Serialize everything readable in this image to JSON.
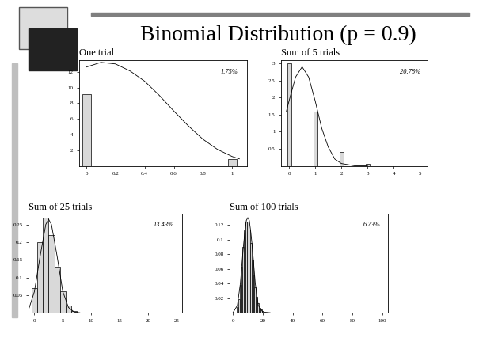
{
  "title": "Binomial Distribution (p = 0.9)",
  "chart_data": [
    {
      "type": "bar",
      "title": "One trial",
      "annotation": "1.75%",
      "color": "#d9d9d9",
      "x": [
        0,
        1
      ],
      "values": [
        9.1,
        0.9
      ],
      "curve_x": [
        0,
        0.1,
        0.2,
        0.3,
        0.4,
        0.5,
        0.6,
        0.7,
        0.8,
        0.9,
        1.0,
        1.05
      ],
      "curve_y": [
        12.6,
        13.2,
        13.0,
        12.1,
        10.8,
        9.0,
        7.0,
        5.1,
        3.4,
        2.1,
        1.2,
        0.9
      ],
      "xlim": [
        -0.05,
        1.1
      ],
      "ylim": [
        0,
        13.5
      ],
      "xticks": [
        0,
        0.2,
        0.4,
        0.6,
        0.8,
        1
      ],
      "yticks": [
        2,
        4,
        6,
        8,
        10,
        12
      ]
    },
    {
      "type": "bar",
      "title": "Sum of 5 trials",
      "annotation": "20.78%",
      "color": "#d9d9d9",
      "x": [
        0,
        1,
        2,
        3
      ],
      "values": [
        3.0,
        1.6,
        0.4,
        0.05
      ],
      "curve_x": [
        -0.1,
        0,
        0.25,
        0.5,
        0.75,
        1,
        1.25,
        1.5,
        1.75,
        2,
        2.5,
        3
      ],
      "curve_y": [
        1.6,
        1.9,
        2.6,
        2.9,
        2.6,
        1.9,
        1.1,
        0.55,
        0.2,
        0.07,
        0.005,
        0
      ],
      "xlim": [
        -0.3,
        5.3
      ],
      "ylim": [
        0,
        3.1
      ],
      "xticks": [
        0,
        1,
        2,
        3,
        4,
        5
      ],
      "yticks": [
        0.5,
        1,
        1.5,
        2,
        2.5,
        3
      ]
    },
    {
      "type": "bar",
      "title": "Sum of 25 trials",
      "annotation": "13.43%",
      "color": "#d9d9d9",
      "x": [
        0,
        1,
        2,
        3,
        4,
        5,
        6,
        7
      ],
      "values": [
        0.07,
        0.2,
        0.27,
        0.22,
        0.13,
        0.06,
        0.02,
        0.005
      ],
      "curve_x": [
        -1,
        0,
        1,
        2,
        2.5,
        3,
        4,
        5,
        6,
        7,
        8
      ],
      "curve_y": [
        0.01,
        0.06,
        0.16,
        0.25,
        0.265,
        0.25,
        0.16,
        0.06,
        0.015,
        0.002,
        0
      ],
      "xlim": [
        -1,
        26
      ],
      "ylim": [
        0,
        0.28
      ],
      "xticks": [
        0,
        5,
        10,
        15,
        20,
        25
      ],
      "yticks": [
        0.05,
        0.1,
        0.15,
        0.2,
        0.25
      ]
    },
    {
      "type": "bar",
      "title": "Sum of 100 trials",
      "annotation": "6.73%",
      "color": "#d9d9d9",
      "x": [
        3,
        4,
        5,
        6,
        7,
        8,
        9,
        10,
        11,
        12,
        13,
        14,
        15,
        16,
        17,
        18,
        19,
        20
      ],
      "values": [
        0.008,
        0.019,
        0.038,
        0.063,
        0.09,
        0.113,
        0.125,
        0.125,
        0.114,
        0.095,
        0.073,
        0.052,
        0.035,
        0.022,
        0.013,
        0.007,
        0.004,
        0.002
      ],
      "curve_x": [
        0,
        3,
        5,
        7,
        8,
        9,
        10,
        11,
        12,
        13,
        15,
        17,
        20,
        25
      ],
      "curve_y": [
        0,
        0.01,
        0.04,
        0.09,
        0.11,
        0.126,
        0.13,
        0.126,
        0.11,
        0.09,
        0.04,
        0.01,
        0.001,
        0
      ],
      "xlim": [
        -2,
        104
      ],
      "ylim": [
        0,
        0.135
      ],
      "xticks": [
        0,
        20,
        40,
        60,
        80,
        100
      ],
      "yticks": [
        0.02,
        0.04,
        0.06,
        0.08,
        0.1,
        0.12
      ]
    }
  ]
}
